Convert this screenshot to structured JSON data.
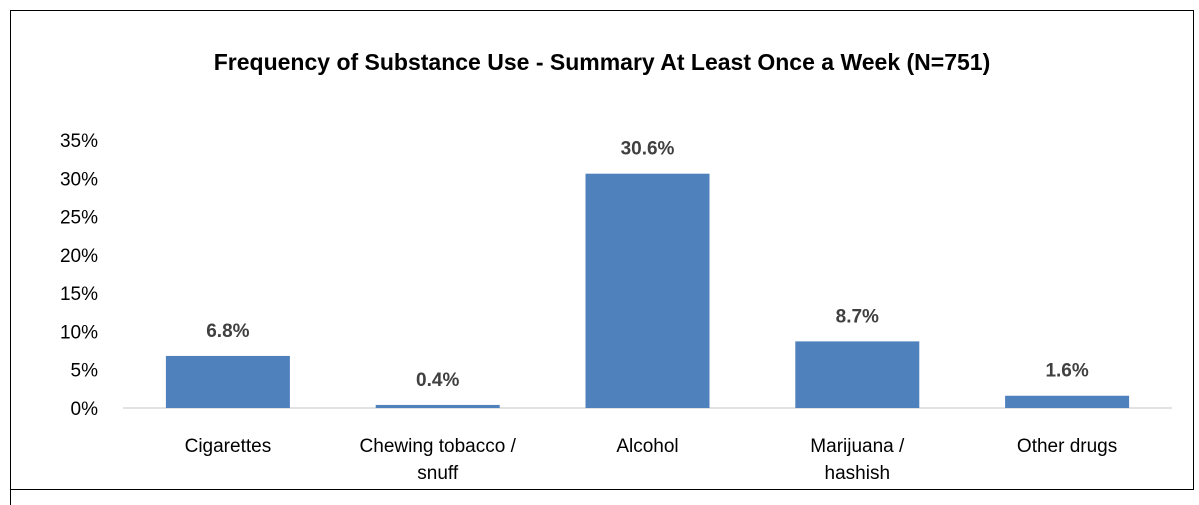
{
  "chart_data": {
    "type": "bar",
    "title": "Frequency of Substance Use - Summary At Least Once a Week (N=751)",
    "categories": [
      "Cigarettes",
      "Chewing tobacco / snuff",
      "Alcohol",
      "Marijuana / hashish",
      "Other drugs"
    ],
    "category_lines": [
      [
        "Cigarettes"
      ],
      [
        "Chewing tobacco /",
        "snuff"
      ],
      [
        "Alcohol"
      ],
      [
        "Marijuana /",
        "hashish"
      ],
      [
        "Other drugs"
      ]
    ],
    "values": [
      6.8,
      0.4,
      30.6,
      8.7,
      1.6
    ],
    "data_labels": [
      "6.8%",
      "0.4%",
      "30.6%",
      "8.7%",
      "1.6%"
    ],
    "ylim": [
      0,
      35
    ],
    "yticks": [
      0,
      5,
      10,
      15,
      20,
      25,
      30,
      35
    ],
    "ytick_labels": [
      "0%",
      "5%",
      "10%",
      "15%",
      "20%",
      "25%",
      "30%",
      "35%"
    ],
    "xlabel": "",
    "ylabel": "",
    "grid": false,
    "legend": "none",
    "colors": {
      "bar": "#4f81bd",
      "axis": "#d9d9d9",
      "data_label": "#404040"
    }
  }
}
